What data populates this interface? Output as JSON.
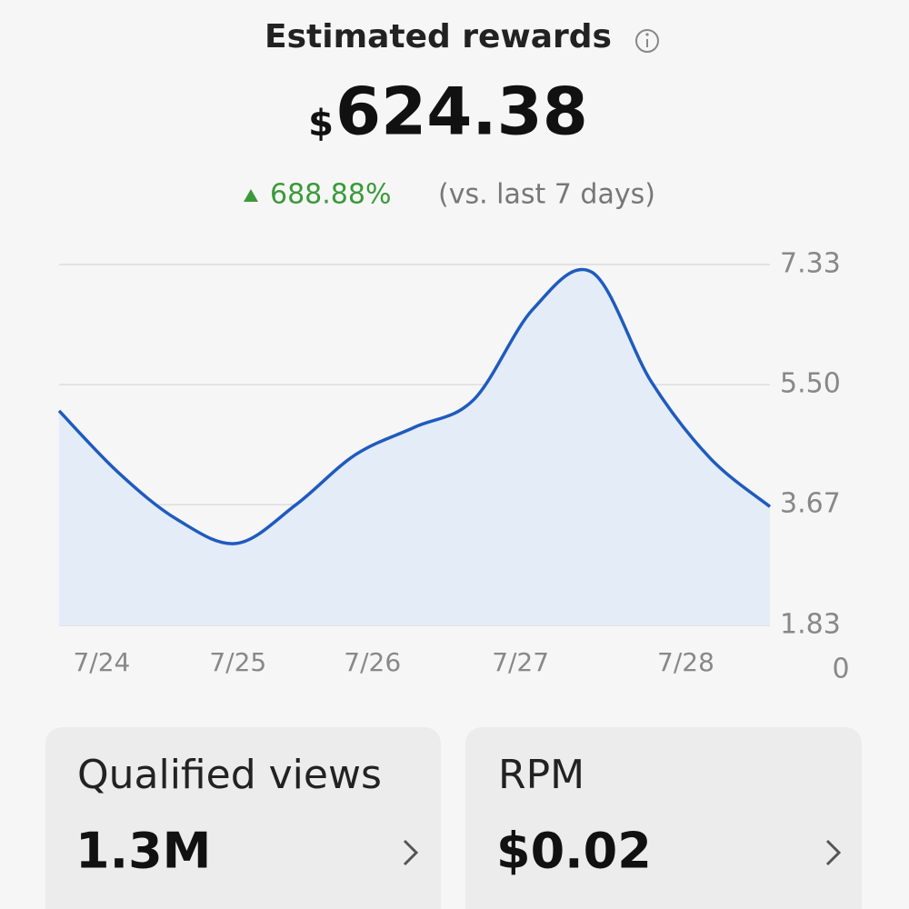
{
  "header": {
    "title": "Estimated rewards",
    "currency": "$",
    "amount": "624.38",
    "change": "688.88%",
    "comparison": "(vs. last 7 days)"
  },
  "chart_data": {
    "type": "area",
    "x": [
      0,
      1,
      2,
      3,
      4,
      5,
      6,
      7,
      8,
      9,
      10,
      11,
      12
    ],
    "series": [
      {
        "values": [
          5.1,
          4.16,
          3.44,
          3.08,
          3.67,
          4.43,
          4.85,
          5.27,
          6.65,
          7.21,
          5.54,
          4.37,
          3.64
        ],
        "color": "#1f5bbf"
      }
    ],
    "fill": "#e4ecf8",
    "xlim": [
      0,
      12
    ],
    "ylim": [
      1.83,
      7.33
    ],
    "yticks": [
      7.33,
      {
        "value": 5.5,
        "label": "5.50"
      },
      3.67,
      1.83
    ],
    "y_floor_label": "0",
    "xticks": [
      {
        "value": 0.72,
        "label": "7/24"
      },
      {
        "value": 3.02,
        "label": "7/25"
      },
      {
        "value": 5.29,
        "label": "7/26"
      },
      {
        "value": 7.79,
        "label": "7/27"
      },
      {
        "value": 10.58,
        "label": "7/28"
      }
    ],
    "grid": true
  },
  "cards": [
    {
      "label": "Qualified views",
      "value": "1.3M"
    },
    {
      "label": "RPM",
      "value": "$0.02"
    }
  ]
}
